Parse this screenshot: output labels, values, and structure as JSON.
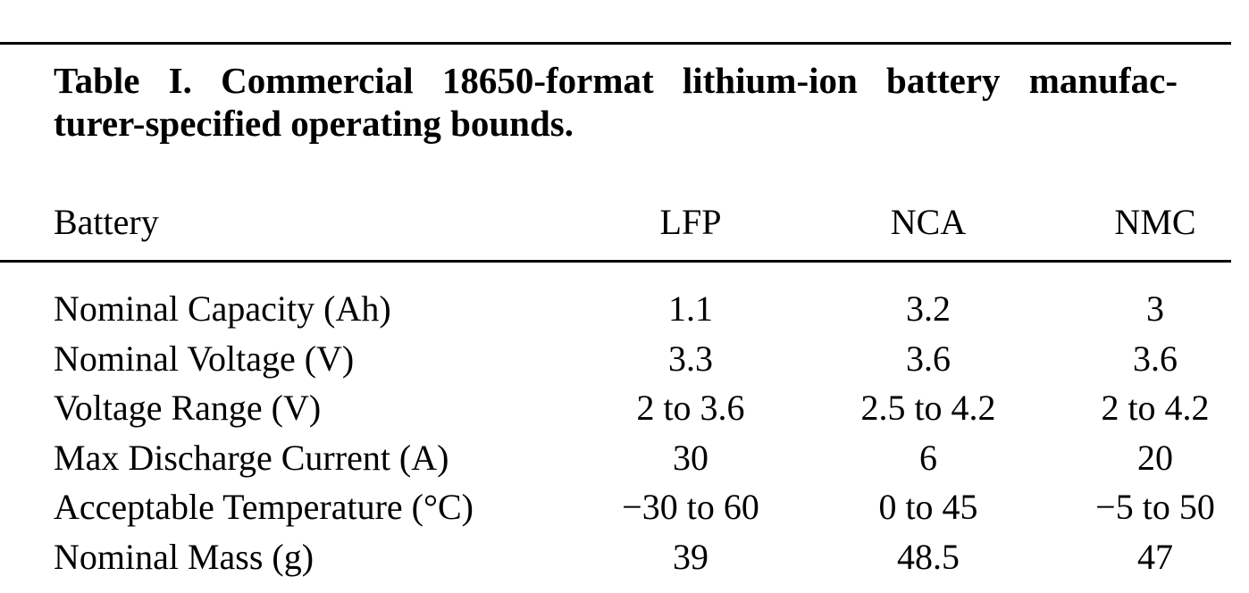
{
  "caption": {
    "lines": [
      "Table I.  Commercial 18650-format lithium-ion battery manufac-",
      "turer-specified operating bounds."
    ]
  },
  "table": {
    "header": [
      "Battery",
      "LFP",
      "NCA",
      "NMC"
    ],
    "rows": [
      [
        "Nominal Capacity (Ah)",
        "1.1",
        "3.2",
        "3"
      ],
      [
        "Nominal Voltage (V)",
        "3.3",
        "3.6",
        "3.6"
      ],
      [
        "Voltage Range (V)",
        "2 to 3.6",
        "2.5 to 4.2",
        "2 to 4.2"
      ],
      [
        "Max Discharge Current (A)",
        "30",
        "6",
        "20"
      ],
      [
        "Acceptable Temperature (°C)",
        "−30 to 60",
        "0 to 45",
        "−5 to 50"
      ],
      [
        "Nominal Mass (g)",
        "39",
        "48.5",
        "47"
      ]
    ]
  }
}
